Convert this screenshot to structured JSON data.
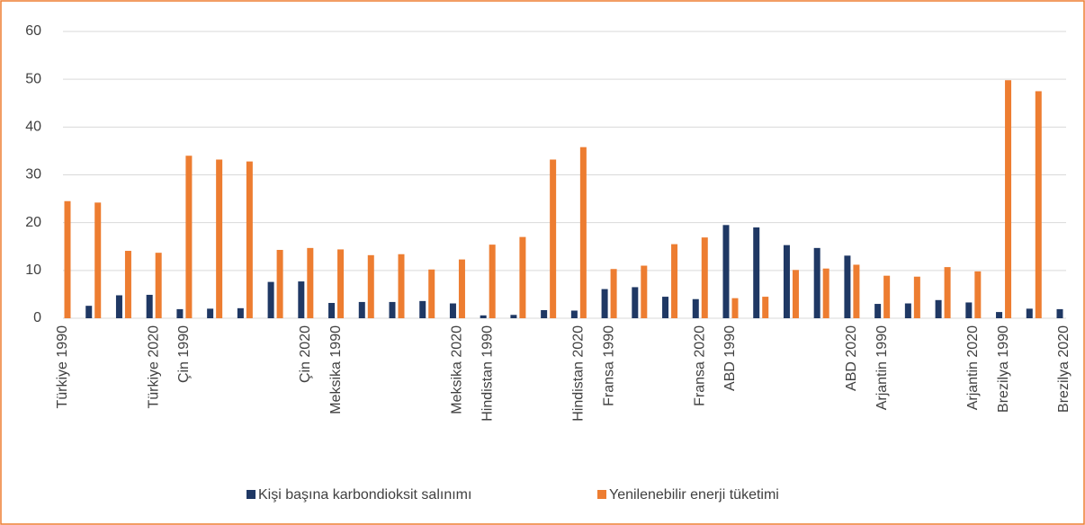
{
  "chart_data": {
    "type": "bar",
    "categories": [
      "Türkiye 1990",
      null,
      null,
      "Türkiye 2020",
      "Çin 1990",
      null,
      null,
      null,
      "Çin 2020",
      "Meksika 1990",
      null,
      null,
      null,
      "Meksika 2020",
      "Hindistan 1990",
      null,
      null,
      "Hindistan 2020",
      "Fransa 1990",
      null,
      null,
      "Fransa 2020",
      "ABD 1990",
      null,
      null,
      null,
      "ABD 2020",
      "Arjantin 1990",
      null,
      null,
      "Arjantin 2020",
      "Brezilya 1990",
      null,
      "Brezilya 2020"
    ],
    "series": [
      {
        "name": "Kişi başına karbondioksit salınımı",
        "color": "#1f3864",
        "values": [
          0,
          2.6,
          4.8,
          4.9,
          1.9,
          2.0,
          2.1,
          7.6,
          7.7,
          3.2,
          3.4,
          3.4,
          3.6,
          3.1,
          0.6,
          0.7,
          1.7,
          1.6,
          6.1,
          6.5,
          4.5,
          4.0,
          19.5,
          19.0,
          15.3,
          14.7,
          13.1,
          3.0,
          3.1,
          3.8,
          3.3,
          1.3,
          2.0,
          1.9
        ]
      },
      {
        "name": "Yenilenebilir enerji tüketimi",
        "color": "#ed7d31",
        "values": [
          24.5,
          24.2,
          14.1,
          13.7,
          34.0,
          33.2,
          32.8,
          14.3,
          14.7,
          14.4,
          13.2,
          13.4,
          10.2,
          12.3,
          15.4,
          17.0,
          33.2,
          35.8,
          10.3,
          11.0,
          15.5,
          16.9,
          4.2,
          4.5,
          10.1,
          10.4,
          11.2,
          8.9,
          8.7,
          10.7,
          9.8,
          49.8,
          47.5,
          null
        ]
      }
    ],
    "ylim": [
      0,
      60
    ],
    "yticks": [
      0,
      10,
      20,
      30,
      40,
      50,
      60
    ],
    "grid": true,
    "legend": "bottom"
  }
}
